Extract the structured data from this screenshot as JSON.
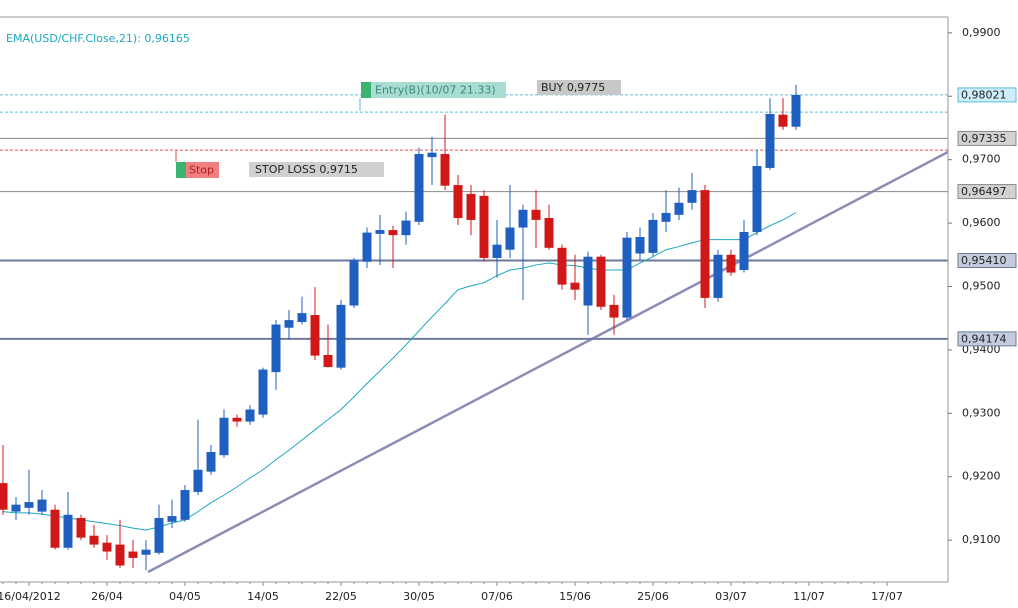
{
  "chart_data": {
    "type": "candlestick",
    "categories": [
      null,
      null,
      "16/04/2012",
      null,
      null,
      null,
      null,
      null,
      "26/04",
      null,
      null,
      null,
      null,
      null,
      "04/05",
      null,
      null,
      null,
      null,
      null,
      "14/05",
      null,
      null,
      null,
      null,
      null,
      "22/05",
      null,
      null,
      null,
      null,
      null,
      "30/05",
      null,
      null,
      null,
      null,
      null,
      "07/06",
      null,
      null,
      null,
      null,
      null,
      "15/06",
      null,
      null,
      null,
      null,
      null,
      "25/06",
      null,
      null,
      null,
      null,
      null,
      "03/07",
      null,
      null,
      null,
      null,
      null,
      "11/07",
      null,
      null,
      null,
      null,
      null,
      "17/07"
    ],
    "open": [
      0.919,
      0.9145,
      0.9151,
      0.9145,
      0.9148,
      0.9088,
      0.9135,
      0.9107,
      0.9096,
      0.9093,
      0.9082,
      0.9077,
      0.908,
      0.9129,
      0.9132,
      0.9176,
      0.9208,
      0.9234,
      0.9293,
      0.9287,
      0.9298,
      0.9365,
      0.9435,
      0.9444,
      0.9455,
      0.9392,
      0.9372,
      0.947,
      0.9539,
      0.9583,
      0.9589,
      0.9581,
      0.9602,
      0.9704,
      0.9709,
      0.966,
      0.9646,
      0.9643,
      0.9545,
      0.9558,
      0.9593,
      0.9621,
      0.9608,
      0.9561,
      0.9506,
      0.947,
      0.9547,
      0.9471,
      0.9451,
      0.9552,
      0.9553,
      0.9602,
      0.9613,
      0.9632,
      0.9652,
      0.9482,
      0.955,
      0.9526,
      0.9586,
      0.9687,
      0.9771,
      0.9752,
      null,
      null,
      null,
      null,
      null,
      null,
      null
    ],
    "high": [
      0.925,
      0.9168,
      0.9211,
      0.9179,
      0.9156,
      0.9176,
      0.914,
      0.9124,
      0.9108,
      0.9132,
      0.91,
      0.91,
      0.9156,
      0.9164,
      0.9187,
      0.929,
      0.925,
      0.9306,
      0.9298,
      0.9313,
      0.9372,
      0.9447,
      0.9463,
      0.9484,
      0.9499,
      0.944,
      0.9479,
      0.9545,
      0.9593,
      0.9613,
      0.9596,
      0.9618,
      0.9719,
      0.9736,
      0.9771,
      0.9676,
      0.966,
      0.9652,
      0.9605,
      0.966,
      0.9629,
      0.9652,
      0.9629,
      0.9566,
      0.955,
      0.9555,
      0.955,
      0.9487,
      0.9586,
      0.9593,
      0.9616,
      0.9652,
      0.9656,
      0.9679,
      0.966,
      0.9558,
      0.9558,
      0.9605,
      0.9716,
      0.9797,
      0.9797,
      0.9818,
      null,
      null,
      null,
      null,
      null,
      null,
      null
    ],
    "low": [
      0.914,
      0.9132,
      0.914,
      0.914,
      0.9085,
      0.9085,
      0.91,
      0.9088,
      0.9069,
      0.9056,
      0.9056,
      0.9053,
      0.9077,
      0.9119,
      0.9129,
      0.9171,
      0.9203,
      0.923,
      0.9279,
      0.9282,
      0.9293,
      0.9337,
      0.9416,
      0.944,
      0.9384,
      0.9372,
      0.9369,
      0.9466,
      0.9529,
      0.9534,
      0.9529,
      0.9566,
      0.9597,
      0.966,
      0.9652,
      0.9597,
      0.9581,
      0.9539,
      0.9514,
      0.9545,
      0.9479,
      0.9561,
      0.9558,
      0.9495,
      0.9479,
      0.9424,
      0.9463,
      0.9424,
      0.9447,
      0.9542,
      0.9548,
      0.9586,
      0.9605,
      0.9621,
      0.9466,
      0.9476,
      0.9517,
      0.9522,
      0.9581,
      0.9684,
      0.9747,
      0.9747,
      null,
      null,
      null,
      null,
      null,
      null,
      null
    ],
    "close": [
      0.9148,
      0.9156,
      0.916,
      0.9164,
      0.9088,
      0.914,
      0.9104,
      0.9093,
      0.9082,
      0.906,
      0.9072,
      0.9085,
      0.9135,
      0.9138,
      0.9179,
      0.9211,
      0.9239,
      0.9293,
      0.9287,
      0.9306,
      0.9369,
      0.944,
      0.9447,
      0.9458,
      0.9391,
      0.9373,
      0.9471,
      0.9542,
      0.9585,
      0.9589,
      0.9581,
      0.9604,
      0.9709,
      0.9711,
      0.9659,
      0.9608,
      0.9605,
      0.9545,
      0.9566,
      0.9593,
      0.9621,
      0.9605,
      0.9561,
      0.9503,
      0.9495,
      0.9547,
      0.9468,
      0.9451,
      0.9577,
      0.9578,
      0.9605,
      0.9616,
      0.9632,
      0.9652,
      0.9482,
      0.955,
      0.9522,
      0.9586,
      0.969,
      0.9772,
      0.9752,
      0.9802,
      null,
      null,
      null,
      null,
      null,
      null,
      null
    ],
    "up_color": "#1f5fbf",
    "down_color": "#d01818",
    "indicator": {
      "label": "EMA(USD/CHF.Close,21): 0,96165",
      "color": "#1aa8c0",
      "values": [
        0.9145,
        0.9143,
        0.9143,
        0.9141,
        0.9138,
        0.9135,
        0.9132,
        0.9129,
        0.9126,
        0.9123,
        0.9119,
        0.9116,
        0.9121,
        0.9127,
        0.9132,
        0.9145,
        0.9159,
        0.9171,
        0.9184,
        0.9198,
        0.9211,
        0.9227,
        0.9242,
        0.9258,
        0.9274,
        0.929,
        0.9306,
        0.9326,
        0.9347,
        0.9367,
        0.9387,
        0.9408,
        0.943,
        0.9452,
        0.9473,
        0.9495,
        0.9501,
        0.9506,
        0.9517,
        0.9526,
        0.9529,
        0.9534,
        0.9537,
        0.9534,
        0.9533,
        0.9529,
        0.9526,
        0.9526,
        0.9526,
        0.9537,
        0.9547,
        0.9558,
        0.9563,
        0.9569,
        0.9574,
        0.9574,
        0.9574,
        0.9574,
        0.9585,
        0.9596,
        0.9605,
        0.96165,
        null,
        null,
        null,
        null,
        null,
        null,
        null
      ]
    },
    "levels": [
      {
        "value": 0.98021,
        "label": "0,98021",
        "color": "#5bbcdc",
        "style": "dashed"
      },
      {
        "value": 0.97335,
        "label": "0,97335",
        "color": "#8a8a8a",
        "style": "solid"
      },
      {
        "value": 0.96497,
        "label": "0,96497",
        "color": "#8a8a8a",
        "style": "solid"
      },
      {
        "value": 0.9541,
        "label": "0,95410",
        "color": "#6e7a98",
        "style": "solid"
      },
      {
        "value": 0.94174,
        "label": "0,94174",
        "color": "#6e7a98",
        "style": "solid"
      }
    ],
    "entry": {
      "label": "Entry(B)(10/07 21.33)",
      "order": "BUY 0,9775",
      "value": 0.9775,
      "color": "#5bbcdc"
    },
    "stop": {
      "label": "Stop",
      "order": "STOP LOSS 0,9715",
      "value": 0.9715,
      "color": "#e05050"
    },
    "ylim": [
      0.9034,
      0.9925
    ],
    "yticks": [
      {
        "value": 0.99,
        "label": "0,9900"
      },
      {
        "value": 0.98,
        "label": "0,9800"
      },
      {
        "value": 0.97,
        "label": "0,9700"
      },
      {
        "value": 0.96,
        "label": "0,9600"
      },
      {
        "value": 0.95,
        "label": "0,9500"
      },
      {
        "value": 0.94,
        "label": "0,9400"
      },
      {
        "value": 0.93,
        "label": "0,9300"
      },
      {
        "value": 0.92,
        "label": "0,9200"
      },
      {
        "value": 0.91,
        "label": "0,9100"
      }
    ]
  }
}
